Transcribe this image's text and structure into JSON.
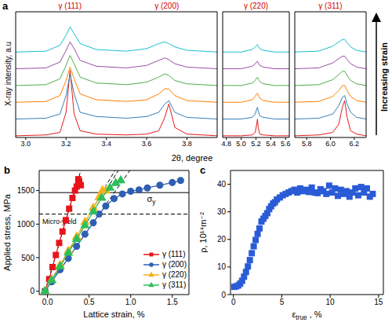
{
  "chart_data": [
    {
      "type": "line",
      "panel_label": "a",
      "xlabel": "2θ, degree",
      "ylabel": "X-ray intensity, a.u",
      "annotation": "Increasing strain",
      "tick_labels": "x",
      "ylim": [
        0,
        75
      ],
      "subplots": [
        {
          "xlim": [
            2.95,
            3.95
          ],
          "xticks": [
            {
              "value": 3,
              "label": "3.0"
            },
            3.2,
            3.4,
            3.6,
            3.8
          ],
          "peak_labels": [
            {
              "text": "γ (111)",
              "color": "#d40000"
            },
            {
              "text": "γ (200)",
              "color": "#d40000"
            }
          ],
          "x": [
            2.95,
            3.1,
            3.17,
            3.2,
            3.22,
            3.24,
            3.27,
            3.35,
            3.5,
            3.6,
            3.66,
            3.69,
            3.71,
            3.74,
            3.8,
            3.95
          ],
          "series": [
            {
              "color": "#e41a1c",
              "values": [
                1,
                1.5,
                3,
                15,
                40,
                14,
                4,
                2,
                1.5,
                2,
                4,
                12,
                20,
                6,
                2,
                1
              ]
            },
            {
              "color": "#377eb8",
              "values": [
                11,
                11.5,
                14,
                25,
                38,
                26,
                15,
                12.5,
                11.5,
                12.5,
                15,
                20,
                22,
                15,
                12,
                11
              ]
            },
            {
              "color": "#ff7f00",
              "values": [
                21,
                21.5,
                25,
                34,
                42,
                35,
                26,
                22.5,
                21.5,
                22.5,
                26,
                29,
                29,
                25,
                22,
                21
              ]
            },
            {
              "color": "#4daf4a",
              "values": [
                31,
                31.5,
                35,
                43,
                49,
                44,
                36,
                32.5,
                31.5,
                33,
                36,
                38,
                37,
                34,
                32,
                31
              ]
            },
            {
              "color": "#984ea3",
              "values": [
                41,
                41.5,
                45,
                52,
                57,
                53,
                46,
                42.5,
                41.5,
                43,
                46,
                47.5,
                46.5,
                44,
                42,
                41
              ]
            },
            {
              "color": "#17becf",
              "values": [
                51,
                51.5,
                55,
                61,
                66,
                62,
                56,
                52.5,
                51.5,
                53,
                56,
                57,
                56,
                54,
                52,
                51
              ]
            }
          ]
        },
        {
          "xlim": [
            4.75,
            5.65
          ],
          "xticks": [
            4.8,
            {
              "value": 5,
              "label": "5.0"
            },
            5.2,
            5.4,
            5.6
          ],
          "peak_labels": [
            {
              "text": "γ (220)",
              "color": "#d40000"
            }
          ],
          "x": [
            4.75,
            5.0,
            5.15,
            5.19,
            5.21,
            5.22,
            5.23,
            5.25,
            5.3,
            5.45,
            5.65
          ],
          "series": [
            {
              "color": "#e41a1c",
              "values": [
                1,
                1,
                1.5,
                3,
                8,
                11,
                6,
                2,
                1.5,
                1,
                1
              ]
            },
            {
              "color": "#377eb8",
              "values": [
                11,
                11,
                12,
                14,
                17,
                18,
                16,
                13,
                12,
                11,
                11
              ]
            },
            {
              "color": "#ff7f00",
              "values": [
                21,
                21,
                22.5,
                24.5,
                26,
                26.5,
                25.5,
                23.5,
                22,
                21,
                21
              ]
            },
            {
              "color": "#4daf4a",
              "values": [
                31,
                31,
                32.5,
                34,
                35.5,
                36,
                35,
                33.5,
                32,
                31,
                31
              ]
            },
            {
              "color": "#984ea3",
              "values": [
                41,
                41,
                42.5,
                44,
                45,
                45.5,
                44.5,
                43,
                42,
                41,
                41
              ]
            },
            {
              "color": "#17becf",
              "values": [
                51,
                51,
                52.5,
                54,
                55,
                55.5,
                54.5,
                53,
                52,
                51,
                51
              ]
            }
          ]
        },
        {
          "xlim": [
            5.7,
            6.3
          ],
          "xticks": [
            5.8,
            {
              "value": 6,
              "label": "6.0"
            },
            6.2
          ],
          "peak_labels": [
            {
              "text": "γ (311)",
              "color": "#d40000"
            }
          ],
          "x": [
            5.7,
            5.9,
            6.02,
            6.07,
            6.1,
            6.12,
            6.14,
            6.17,
            6.22,
            6.3
          ],
          "series": [
            {
              "color": "#e41a1c",
              "values": [
                1,
                1.5,
                3,
                8,
                18,
                22,
                12,
                4,
                2,
                1
              ]
            },
            {
              "color": "#377eb8",
              "values": [
                11,
                11.5,
                14,
                19,
                24,
                25,
                20,
                15,
                12,
                11
              ]
            },
            {
              "color": "#ff7f00",
              "values": [
                21,
                21.5,
                24.5,
                28,
                31,
                31,
                28,
                24.5,
                22,
                21
              ]
            },
            {
              "color": "#4daf4a",
              "values": [
                31,
                31.5,
                34.5,
                37.5,
                39.5,
                39.5,
                37,
                34,
                32,
                31
              ]
            },
            {
              "color": "#984ea3",
              "values": [
                41,
                41.5,
                44.5,
                47,
                48.5,
                48.5,
                46.5,
                44,
                42,
                41
              ]
            },
            {
              "color": "#17becf",
              "values": [
                51,
                51.5,
                54.5,
                57,
                58.5,
                58.5,
                56.5,
                54,
                52,
                51
              ]
            }
          ]
        }
      ]
    },
    {
      "type": "scatter",
      "panel_label": "b",
      "xlabel": "Lattice strain, %",
      "ylabel": "Applied stress, MPa",
      "xlim": [
        -0.1,
        1.7
      ],
      "xticks": [
        {
          "value": 0,
          "label": "0.0"
        },
        0.5,
        {
          "value": 1,
          "label": "1.0"
        },
        1.5
      ],
      "ylim": [
        -50,
        1800
      ],
      "yticks": [
        0,
        500,
        1000,
        1500
      ],
      "legend": "lower right",
      "series": [
        {
          "name": "γ (111)",
          "color": "#e8141a",
          "marker": "square",
          "line_style": "solid",
          "x": [
            -0.03,
            0.02,
            0.06,
            0.1,
            0.14,
            0.18,
            0.22,
            0.26,
            0.3,
            0.33,
            0.35,
            0.37,
            0.38,
            0.37,
            0.38,
            0.4
          ],
          "y": [
            0,
            180,
            360,
            540,
            720,
            890,
            1060,
            1230,
            1390,
            1500,
            1560,
            1600,
            1640,
            1670,
            1620,
            1580
          ]
        },
        {
          "name": "γ (200)",
          "color": "#2f5fb3",
          "marker": "circle",
          "line_style": "solid",
          "x": [
            -0.03,
            0.05,
            0.15,
            0.25,
            0.35,
            0.45,
            0.55,
            0.62,
            0.7,
            0.8,
            0.9,
            1.0,
            1.1,
            1.2,
            1.35,
            1.5,
            1.6
          ],
          "y": [
            0,
            140,
            320,
            490,
            670,
            850,
            1020,
            1150,
            1270,
            1380,
            1450,
            1490,
            1510,
            1540,
            1580,
            1620,
            1650
          ]
        },
        {
          "name": "γ (220)",
          "color": "#f5b21b",
          "marker": "triangle",
          "line_style": "solid",
          "x": [
            -0.03,
            0.05,
            0.15,
            0.25,
            0.35,
            0.45,
            0.55,
            0.62,
            0.66,
            0.7
          ],
          "y": [
            0,
            170,
            385,
            600,
            810,
            1030,
            1240,
            1400,
            1500,
            1500
          ]
        },
        {
          "name": "γ (311)",
          "color": "#2cbf5a",
          "marker": "triangle",
          "line_style": "solid",
          "x": [
            -0.03,
            0.05,
            0.15,
            0.25,
            0.35,
            0.45,
            0.55,
            0.65,
            0.75,
            0.82,
            0.88
          ],
          "y": [
            0,
            160,
            365,
            570,
            775,
            980,
            1185,
            1390,
            1540,
            1610,
            1650
          ]
        }
      ],
      "fit_lines": [
        {
          "color": "#000000",
          "line_style": "dashed",
          "x": [
            -0.03,
            0.4
          ],
          "y": [
            0,
            1800
          ]
        },
        {
          "color": "#000000",
          "line_style": "dashed",
          "x": [
            -0.03,
            0.99
          ],
          "y": [
            0,
            1800
          ]
        },
        {
          "color": "#000000",
          "line_style": "dashed",
          "x": [
            -0.03,
            0.81
          ],
          "y": [
            0,
            1800
          ]
        },
        {
          "color": "#000000",
          "line_style": "dashed",
          "x": [
            -0.03,
            0.85
          ],
          "y": [
            0,
            1800
          ]
        }
      ],
      "reference_lines": [
        {
          "y": 1470,
          "line_style": "solid",
          "label": {
            "text": "σ",
            "sub": "y"
          }
        },
        {
          "y": 1150,
          "line_style": "dashed",
          "label": "Micro-yield"
        }
      ]
    },
    {
      "type": "scatter",
      "panel_label": "c",
      "xlabel": {
        "text": "ε",
        "sub": "true",
        "suffix": " , %"
      },
      "ylabel": "ρ, 10¹⁴m⁻²",
      "xlim": [
        -0.3,
        15.5
      ],
      "xticks": [
        0,
        5,
        10,
        15
      ],
      "ylim": [
        0,
        45
      ],
      "yticks": [
        0,
        10,
        20,
        30,
        40
      ],
      "marker": "square",
      "color": "#2a5bd7",
      "x": [
        0.1,
        0.3,
        0.5,
        0.7,
        0.9,
        1.1,
        1.3,
        1.5,
        1.7,
        1.9,
        2.1,
        2.3,
        2.5,
        2.7,
        2.9,
        3.1,
        3.3,
        3.5,
        3.7,
        3.9,
        4.1,
        4.3,
        4.5,
        4.8,
        5.1,
        5.4,
        5.7,
        6.0,
        6.3,
        6.6,
        6.9,
        7.2,
        7.5,
        7.8,
        8.1,
        8.4,
        8.7,
        9.0,
        9.3,
        9.6,
        9.9,
        10.2,
        10.5,
        10.8,
        11.1,
        11.4,
        11.7,
        12.0,
        12.3,
        12.6,
        12.9,
        13.2,
        13.5,
        13.8,
        14.1,
        14.4
      ],
      "values": [
        2.8,
        3.0,
        3.3,
        4.0,
        5.0,
        6.5,
        8.2,
        10.2,
        12.5,
        15.0,
        17.5,
        19.8,
        22.0,
        24.0,
        26.5,
        27.5,
        28.5,
        29.5,
        31.0,
        32.0,
        33.0,
        33.5,
        34.5,
        35.2,
        36.0,
        36.5,
        37.0,
        37.5,
        38.0,
        37.0,
        38.5,
        37.5,
        38.0,
        37.2,
        38.8,
        37.0,
        36.8,
        38.2,
        37.5,
        36.5,
        39.5,
        37.0,
        38.5,
        35.8,
        38.0,
        36.5,
        37.5,
        35.5,
        37.0,
        38.5,
        36.0,
        39.0,
        37.0,
        38.5,
        35.5,
        36.5
      ]
    }
  ]
}
